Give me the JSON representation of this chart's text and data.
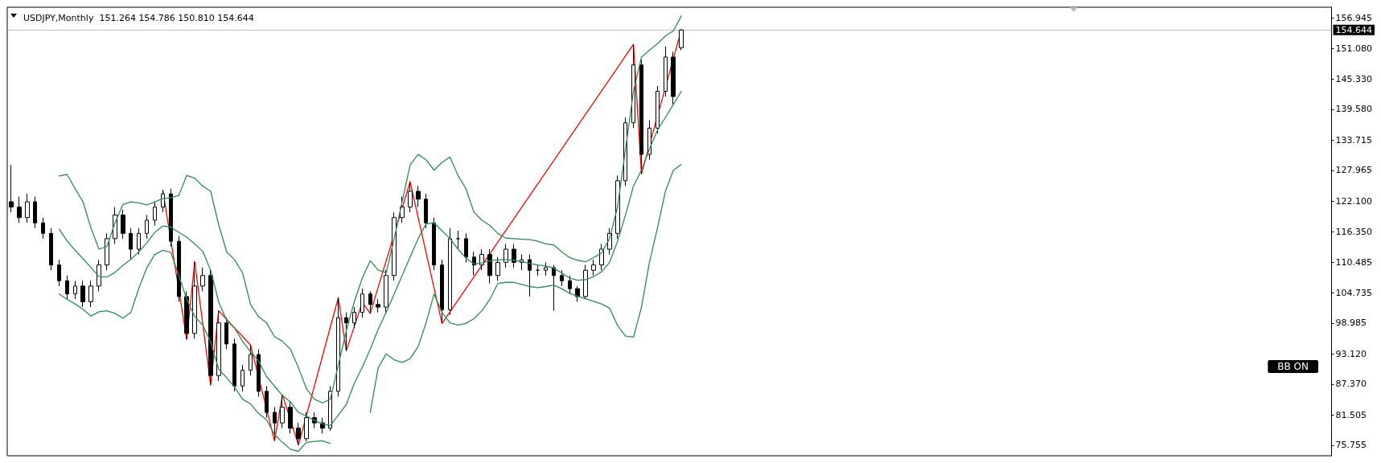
{
  "chart_data": {
    "type": "candlestick",
    "title": "USDJPY,Monthly  151.264 154.786 150.810 154.644",
    "categories": [
      null,
      null,
      null,
      null,
      null,
      null,
      null,
      null,
      null,
      null,
      null,
      null,
      null,
      null,
      null,
      null,
      null,
      null,
      null,
      null,
      null,
      null,
      null,
      null,
      null,
      null,
      null,
      null,
      null,
      null,
      null,
      null,
      null,
      null,
      null,
      null,
      null,
      null,
      null,
      null,
      null,
      null,
      null,
      null,
      null,
      null,
      null,
      null,
      null,
      null,
      null,
      null,
      null,
      null,
      null,
      null,
      null,
      null,
      null,
      null,
      null,
      null,
      null,
      null,
      null,
      null,
      null,
      null,
      null,
      null,
      null,
      null,
      null,
      null,
      null,
      null,
      null,
      null,
      null,
      null,
      null,
      null,
      null,
      null,
      null,
      null,
      null,
      null,
      null,
      null,
      null,
      null,
      null,
      null,
      null,
      null,
      null,
      null,
      null,
      null,
      null,
      null,
      null,
      null,
      null,
      null,
      null,
      null,
      null,
      null,
      null,
      null,
      null,
      null,
      null,
      null,
      null,
      null,
      null,
      null,
      null,
      null,
      null,
      null,
      null,
      null,
      null,
      null,
      null,
      null,
      null,
      null,
      null,
      null,
      null,
      null,
      null,
      null,
      null,
      null,
      null,
      null,
      null,
      null,
      null,
      null,
      null,
      null,
      null,
      null,
      null,
      null,
      null,
      null,
      null,
      null,
      null,
      null,
      null,
      null,
      null,
      null,
      null,
      null,
      null,
      null
    ],
    "ohlc": [
      [
        122,
        129,
        120,
        121
      ],
      [
        121,
        123,
        118,
        119
      ],
      [
        119,
        123.5,
        118,
        122
      ],
      [
        122,
        123,
        117,
        118
      ],
      [
        118,
        119,
        115,
        116
      ],
      [
        116,
        117,
        109,
        110
      ],
      [
        110,
        111,
        106,
        107
      ],
      [
        107,
        108,
        103.5,
        104.5
      ],
      [
        104.5,
        107,
        103.5,
        106
      ],
      [
        106,
        107,
        102,
        103
      ],
      [
        103,
        107,
        102,
        106
      ],
      [
        106,
        111,
        105,
        110
      ],
      [
        110,
        116,
        109,
        115
      ],
      [
        115,
        121,
        114,
        119.5
      ],
      [
        119.5,
        120.5,
        115,
        116
      ],
      [
        116,
        117,
        111,
        113
      ],
      [
        113,
        117,
        112,
        116
      ],
      [
        116,
        119.5,
        115,
        118.5
      ],
      [
        118.5,
        122,
        117.5,
        121
      ],
      [
        121,
        124.2,
        120,
        123.5
      ],
      [
        123.5,
        124.5,
        113.5,
        114.5
      ],
      [
        114.5,
        115.5,
        103,
        104
      ],
      [
        104,
        105,
        95.9,
        97
      ],
      [
        97,
        110.6,
        96,
        106
      ],
      [
        106,
        109.5,
        105,
        108
      ],
      [
        108,
        109,
        87.2,
        89
      ],
      [
        89,
        101.3,
        88,
        99
      ],
      [
        99,
        100,
        94,
        95
      ],
      [
        95,
        96,
        86,
        87
      ],
      [
        87,
        91,
        86,
        90
      ],
      [
        90,
        94.8,
        89,
        93
      ],
      [
        93,
        94,
        85,
        86
      ],
      [
        86,
        87,
        81,
        82
      ],
      [
        82,
        83,
        76.6,
        80
      ],
      [
        80,
        85.3,
        79,
        83
      ],
      [
        83,
        84,
        78,
        79
      ],
      [
        79,
        80,
        75.8,
        77
      ],
      [
        77,
        82,
        76.5,
        81
      ],
      [
        81,
        82,
        79,
        80
      ],
      [
        80,
        81,
        78,
        79
      ],
      [
        79,
        87,
        78.5,
        86
      ],
      [
        86,
        103.8,
        85,
        100
      ],
      [
        100,
        101,
        93.7,
        99
      ],
      [
        99,
        102,
        98,
        101
      ],
      [
        101,
        105.5,
        100,
        104.5
      ],
      [
        104.5,
        105,
        100.8,
        102.5
      ],
      [
        102.5,
        103.5,
        101,
        102
      ],
      [
        102,
        109,
        101,
        108
      ],
      [
        108,
        120,
        107,
        119
      ],
      [
        119,
        123,
        118,
        121
      ],
      [
        121,
        125.8,
        120,
        124
      ],
      [
        124,
        125,
        121,
        122.5
      ],
      [
        122.5,
        123.5,
        117,
        118
      ],
      [
        118,
        119,
        109,
        110
      ],
      [
        110,
        111,
        98.9,
        101.5
      ],
      [
        101.5,
        117,
        100.5,
        115
      ],
      [
        115,
        116.5,
        113,
        115
      ],
      [
        115,
        116,
        110.5,
        111.5
      ],
      [
        111.5,
        112.5,
        108,
        110
      ],
      [
        110,
        113,
        109,
        112
      ],
      [
        112,
        113,
        106.5,
        108
      ],
      [
        108,
        111.5,
        107,
        110.5
      ],
      [
        110.5,
        114,
        109.5,
        113
      ],
      [
        113,
        114,
        109.5,
        110.5
      ],
      [
        110.5,
        112,
        109,
        111
      ],
      [
        111,
        112,
        104,
        109
      ],
      [
        109,
        110,
        108,
        109
      ],
      [
        109,
        110.5,
        108,
        109.5
      ],
      [
        109.5,
        110,
        101.3,
        108
      ],
      [
        108,
        109,
        106,
        107
      ],
      [
        107,
        108,
        104.5,
        105.5
      ],
      [
        105.5,
        106,
        103,
        104
      ],
      [
        104,
        110,
        103.5,
        109
      ],
      [
        109,
        111,
        108,
        110
      ],
      [
        110,
        114,
        109,
        113
      ],
      [
        113,
        117,
        112,
        116
      ],
      [
        116,
        127,
        115,
        126
      ],
      [
        126,
        138,
        125,
        137
      ],
      [
        137,
        151.9,
        136,
        148
      ],
      [
        148,
        149,
        127.3,
        131
      ],
      [
        131,
        137.5,
        130,
        136
      ],
      [
        136,
        144,
        135,
        143
      ],
      [
        143,
        151.5,
        142,
        149.5
      ],
      [
        149.5,
        150.5,
        140.5,
        142
      ],
      [
        151.264,
        154.786,
        150.81,
        154.644
      ],
      null,
      null,
      null,
      null,
      null,
      null,
      null,
      null,
      null,
      null,
      null,
      null,
      null,
      null,
      null,
      null,
      null,
      null,
      null,
      null,
      null,
      null,
      null,
      null,
      null,
      null,
      null,
      null,
      null,
      null,
      null,
      null,
      null,
      null,
      null,
      null,
      null,
      null,
      null,
      null,
      null,
      null,
      null,
      null,
      null,
      null,
      null,
      null,
      null,
      null,
      null,
      null,
      null,
      null,
      null,
      null,
      null,
      null,
      null,
      null,
      null,
      null,
      null,
      null,
      null,
      null,
      null,
      null,
      null,
      null,
      null,
      null,
      null,
      null,
      null,
      null,
      null,
      null,
      null,
      null,
      null
    ],
    "series": [
      {
        "type": "line",
        "color": "#2e8b57",
        "values": [
          null,
          null,
          null,
          null,
          null,
          null,
          126.9,
          127.2,
          124.5,
          122,
          117,
          113,
          113.5,
          118,
          121.5,
          122,
          121.8,
          121.4,
          122,
          122.6,
          122.8,
          123.2,
          127,
          126.5,
          125,
          124,
          117.7,
          112.5,
          111,
          108.5,
          102.5,
          100.2,
          99,
          96.4,
          95.5,
          94,
          90.5,
          86.5,
          84.5,
          83.8,
          84.5,
          91,
          97.5,
          103,
          107.5,
          110.8,
          109,
          108.5,
          115,
          122,
          129,
          131,
          130,
          128,
          129.5,
          130.5,
          127,
          124.5,
          120,
          118.5,
          117.5,
          116,
          115.1,
          115,
          114.9,
          114.8,
          114.5,
          114,
          113.8,
          112.5,
          111.4,
          110.9,
          110.6,
          111.4,
          112.3,
          115,
          121,
          132,
          143,
          149.5,
          150.8,
          152,
          153.5,
          154.5,
          157.3,
          null,
          null,
          null,
          null,
          null,
          null,
          null,
          null,
          null,
          null,
          null,
          null,
          null,
          null,
          null,
          null,
          null,
          null,
          null,
          null,
          null,
          null,
          null,
          null,
          null,
          null,
          null,
          null,
          null,
          null,
          null,
          null,
          null,
          null,
          null,
          null,
          null,
          null,
          null,
          null,
          null,
          null,
          null,
          null,
          null,
          null,
          null,
          null,
          null,
          null,
          null,
          null,
          null,
          null,
          null,
          null,
          null,
          null,
          null,
          null,
          null,
          null,
          null,
          null,
          null,
          null,
          null,
          null,
          null,
          null,
          null,
          null,
          null,
          null,
          null,
          null,
          null,
          null,
          null,
          null,
          null
        ]
      },
      {
        "type": "line",
        "color": "#2e8b57",
        "values": [
          null,
          null,
          null,
          null,
          null,
          null,
          116.8,
          114.6,
          112.8,
          111.2,
          109.5,
          107.8,
          107.7,
          108.6,
          109.9,
          111.1,
          112.5,
          114.2,
          116.2,
          117.4,
          117.2,
          116.2,
          115.3,
          114,
          112.6,
          109,
          103,
          99.5,
          98,
          95.5,
          93.5,
          91.8,
          88.8,
          87,
          85.2,
          84,
          82,
          81.3,
          80.5,
          79.8,
          79.5,
          81.5,
          83.5,
          87.5,
          90.6,
          94,
          97.8,
          101,
          104.5,
          108,
          111.5,
          115,
          117.8,
          118,
          116.5,
          115,
          113,
          111.3,
          110.2,
          110.4,
          110.8,
          111,
          111,
          110.9,
          110.6,
          110.3,
          110,
          109.8,
          109.4,
          108.5,
          107.5,
          107.1,
          107.2,
          107.8,
          108.7,
          110.5,
          114.5,
          119.5,
          125,
          128,
          132,
          135.6,
          138,
          140.5,
          143,
          null,
          null,
          null,
          null,
          null,
          null,
          null,
          null,
          null,
          null,
          null,
          null,
          null,
          null,
          null,
          null,
          null,
          null,
          null,
          null,
          null,
          null,
          null,
          null,
          null,
          null,
          null,
          null,
          null,
          null,
          null,
          null,
          null,
          null,
          null,
          null,
          null,
          null,
          null,
          null,
          null,
          null,
          null,
          null,
          null,
          null,
          null,
          null,
          null,
          null,
          null,
          null,
          null,
          null,
          null,
          null,
          null,
          null,
          null,
          null,
          null,
          null,
          null,
          null,
          null,
          null,
          null,
          null,
          null,
          null,
          null,
          null,
          null,
          null,
          null,
          null,
          null,
          null,
          null,
          null,
          null
        ]
      },
      {
        "type": "line",
        "color": "#2e8b57",
        "values": [
          null,
          null,
          null,
          null,
          null,
          null,
          104.5,
          103.5,
          102.6,
          101.6,
          100.3,
          101.1,
          101.3,
          100.8,
          99.9,
          101,
          105.6,
          109.5,
          112,
          112.8,
          112.4,
          108,
          103.5,
          100.2,
          98.6,
          95.4,
          90.2,
          88.6,
          86.8,
          84.5,
          83.6,
          81.8,
          80.6,
          77.8,
          76.3,
          75,
          74.6,
          76.3,
          76.5,
          76.6,
          76.1,
          null,
          null,
          null,
          null,
          82,
          90.5,
          93.1,
          92,
          91.5,
          92.2,
          94.5,
          99,
          104.5,
          101,
          99,
          98.6,
          98.9,
          99.8,
          101.3,
          103.5,
          106.5,
          106.7,
          106.7,
          106.3,
          105.9,
          105.7,
          105.9,
          106.2,
          105.5,
          104.6,
          104.1,
          103.6,
          103.1,
          102.6,
          101.8,
          98.5,
          96.5,
          96.3,
          102,
          110.5,
          117,
          124,
          128,
          129.1,
          null,
          null,
          null,
          null,
          null,
          null,
          null,
          null,
          null,
          null,
          null,
          null,
          null,
          null,
          null,
          null,
          null,
          null,
          null,
          null,
          null,
          null,
          null,
          null,
          null,
          null,
          null,
          null,
          null,
          null,
          null,
          null,
          null,
          null,
          null,
          null,
          null,
          null,
          null,
          null,
          null,
          null,
          null,
          null,
          null,
          null,
          null,
          null,
          null,
          null,
          null,
          null,
          null,
          null,
          null,
          null,
          null,
          null,
          null,
          null,
          null,
          null,
          null,
          null,
          null,
          null,
          null,
          null,
          null,
          null,
          null,
          null,
          null,
          null,
          null,
          null,
          null,
          null,
          null,
          null,
          null
        ]
      },
      {
        "type": "line",
        "color": "#ff0000",
        "values": [
          null,
          null,
          null,
          null,
          null,
          null,
          null,
          null,
          null,
          null,
          null,
          null,
          null,
          null,
          null,
          null,
          null,
          null,
          null,
          124.2,
          null,
          null,
          95.9,
          110.6,
          null,
          87.2,
          101.3,
          null,
          null,
          null,
          94.8,
          null,
          null,
          76.6,
          85.3,
          null,
          75.8,
          null,
          null,
          null,
          null,
          103.8,
          93.7,
          null,
          102.9,
          100.8,
          null,
          null,
          null,
          null,
          125.8,
          null,
          null,
          null,
          98.9,
          null,
          null,
          null,
          null,
          null,
          null,
          null,
          null,
          null,
          null,
          null,
          null,
          null,
          null,
          null,
          null,
          null,
          null,
          null,
          null,
          null,
          null,
          null,
          151.9,
          127.3,
          null,
          null,
          null,
          null,
          154.7,
          null,
          null,
          null,
          null,
          null,
          null,
          null,
          null,
          null,
          null,
          null,
          null,
          null,
          null,
          null,
          null,
          null,
          null,
          null,
          null,
          null,
          null,
          null,
          null,
          null,
          null,
          null,
          null,
          null,
          null,
          null,
          null,
          null,
          null,
          null,
          null,
          null,
          null,
          null,
          null,
          null,
          null,
          null,
          null,
          null,
          null,
          null,
          null,
          null,
          null,
          null,
          null,
          null,
          null,
          null,
          null,
          null,
          null,
          null,
          null,
          null,
          null,
          null,
          null,
          null,
          null,
          null,
          null,
          null,
          null,
          null,
          null,
          null,
          null,
          null,
          null,
          null,
          null,
          null,
          null,
          null
        ]
      }
    ],
    "ylim": [
      73.76,
      158.96
    ],
    "yticks": [
      {
        "value": 75.755,
        "label": "75.755"
      },
      {
        "value": 81.505,
        "label": "81.505"
      },
      {
        "value": 87.37,
        "label": "87.370"
      },
      {
        "value": 93.12,
        "label": "93.120"
      },
      {
        "value": 98.985,
        "label": "98.985"
      },
      {
        "value": 104.735,
        "label": "104.735"
      },
      {
        "value": 110.485,
        "label": "110.485"
      },
      {
        "value": 116.35,
        "label": "116.350"
      },
      {
        "value": 122.1,
        "label": "122.100"
      },
      {
        "value": 127.965,
        "label": "127.965"
      },
      {
        "value": 133.715,
        "label": "133.715"
      },
      {
        "value": 139.58,
        "label": "139.580"
      },
      {
        "value": 145.33,
        "label": "145.330"
      },
      {
        "value": 151.08,
        "label": "151.080"
      },
      {
        "value": 156.945,
        "label": "156.945"
      }
    ],
    "ref_lines": [
      {
        "axis": "y",
        "value": 154.644,
        "label": "154.644",
        "color": "#c0c0c0"
      }
    ],
    "annotations": [
      "BB ON"
    ],
    "tick_labels": "y",
    "grid": false,
    "marker": "none"
  }
}
